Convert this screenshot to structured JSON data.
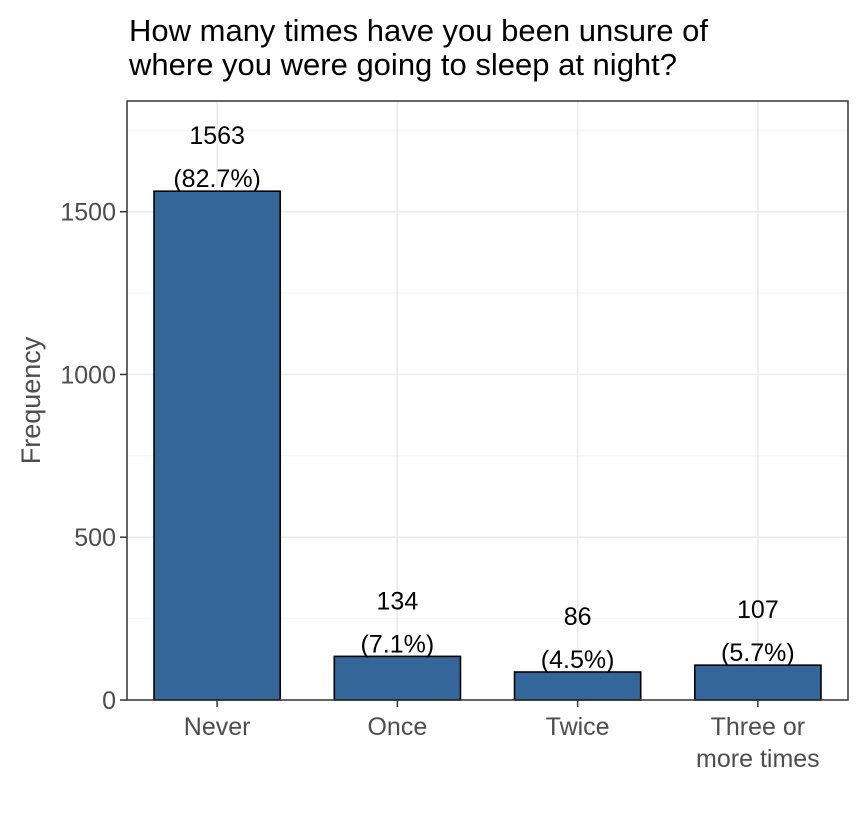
{
  "chart_data": {
    "type": "bar",
    "title_lines": [
      "How many times have you been unsure of",
      "where you were going to sleep at night?"
    ],
    "xlabel": "",
    "ylabel": "Frequency",
    "ylim": [
      0,
      1840
    ],
    "yticks": [
      0,
      500,
      1000,
      1500
    ],
    "ytick_labels": [
      "0",
      "500",
      "1000",
      "1500"
    ],
    "categories": [
      {
        "label_lines": [
          "Never"
        ]
      },
      {
        "label_lines": [
          "Once"
        ]
      },
      {
        "label_lines": [
          "Twice"
        ]
      },
      {
        "label_lines": [
          "Three or",
          "more times"
        ]
      }
    ],
    "values": [
      1563,
      134,
      86,
      107
    ],
    "count_labels": [
      "1563",
      "134",
      "86",
      "107"
    ],
    "percent_labels": [
      "(82.7%)",
      "(7.1%)",
      "(4.5%)",
      "(5.7%)"
    ],
    "bar_color": "#336699",
    "bar_edge_color": "#000000",
    "grid": true,
    "legend": "none"
  }
}
